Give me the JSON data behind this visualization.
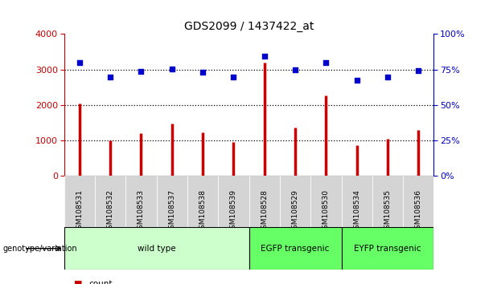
{
  "title": "GDS2099 / 1437422_at",
  "samples": [
    "GSM108531",
    "GSM108532",
    "GSM108533",
    "GSM108537",
    "GSM108538",
    "GSM108539",
    "GSM108528",
    "GSM108529",
    "GSM108530",
    "GSM108534",
    "GSM108535",
    "GSM108536"
  ],
  "counts": [
    2050,
    1010,
    1200,
    1480,
    1220,
    970,
    3200,
    1370,
    2280,
    870,
    1060,
    1290
  ],
  "percentiles": [
    80.0,
    69.5,
    74.0,
    75.25,
    73.0,
    69.5,
    84.5,
    75.0,
    80.0,
    67.5,
    70.0,
    74.5
  ],
  "groups": [
    {
      "label": "wild type",
      "start": 0,
      "end": 6,
      "color": "#ccffcc"
    },
    {
      "label": "EGFP transgenic",
      "start": 6,
      "end": 9,
      "color": "#66ff66"
    },
    {
      "label": "EYFP transgenic",
      "start": 9,
      "end": 12,
      "color": "#66ff66"
    }
  ],
  "ylim_left": [
    0,
    4000
  ],
  "ylim_right": [
    0,
    100
  ],
  "yticks_left": [
    0,
    1000,
    2000,
    3000,
    4000
  ],
  "yticks_right": [
    0,
    25,
    50,
    75,
    100
  ],
  "bar_color": "#cc0000",
  "dot_color": "#0000cc",
  "bg_color": "#ffffff",
  "bar_width": 0.08,
  "dot_size": 18,
  "xlabel_color": "#cc0000",
  "ylabel_right_color": "#0000cc",
  "cell_bg": "#d4d4d4",
  "genotype_label": "genotype/variation"
}
